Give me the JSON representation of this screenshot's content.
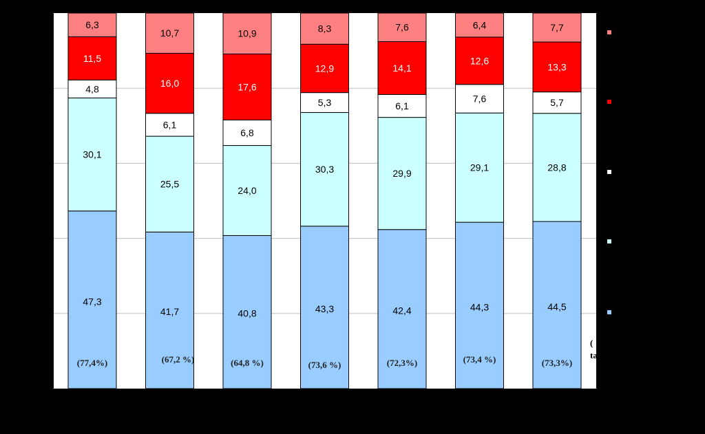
{
  "chart_data": {
    "type": "bar",
    "stacked": true,
    "categories": [
      "",
      "",
      "",
      "",
      "",
      "",
      ""
    ],
    "series": [
      {
        "values": [
          47.3,
          41.7,
          40.8,
          43.3,
          42.4,
          44.3,
          44.5
        ],
        "labels": [
          "47,3",
          "41,7",
          "40,8",
          "43,3",
          "42,4",
          "44,3",
          "44,5"
        ],
        "color": "#99ccff"
      },
      {
        "values": [
          30.1,
          25.5,
          24.0,
          30.3,
          29.9,
          29.1,
          28.8
        ],
        "labels": [
          "30,1",
          "25,5",
          "24,0",
          "30,3",
          "29,9",
          "29,1",
          "28,8"
        ],
        "color": "#ccffff"
      },
      {
        "values": [
          4.8,
          6.1,
          6.8,
          5.3,
          6.1,
          7.6,
          5.7
        ],
        "labels": [
          "4,8",
          "6,1",
          "6,8",
          "5,3",
          "6,1",
          "7,6",
          "5,7"
        ],
        "color": "#ffffff"
      },
      {
        "values": [
          11.5,
          16.0,
          17.6,
          12.9,
          14.1,
          12.6,
          13.3
        ],
        "labels": [
          "11,5",
          "16,0",
          "17,6",
          "12,9",
          "14,1",
          "12,6",
          "13,3"
        ],
        "color": "#ff0000"
      },
      {
        "values": [
          6.3,
          10.7,
          10.9,
          8.3,
          7.6,
          6.4,
          7.7
        ],
        "labels": [
          "6,3",
          "10,7",
          "10,9",
          "8,3",
          "7,6",
          "6,4",
          "7,7"
        ],
        "color": "#ff8080"
      }
    ],
    "annotations": [
      "(77,4%)",
      "(67,2 %)",
      "(64,8 %)",
      "(73,6 %)",
      "(72,3%)",
      "(73,4 %)",
      "(73,3%)"
    ],
    "clipped_text": [
      "(",
      "ta"
    ],
    "ylim": [
      0,
      100
    ],
    "grid": true,
    "legend_position": "right",
    "title": "",
    "xlabel": "",
    "ylabel": ""
  }
}
